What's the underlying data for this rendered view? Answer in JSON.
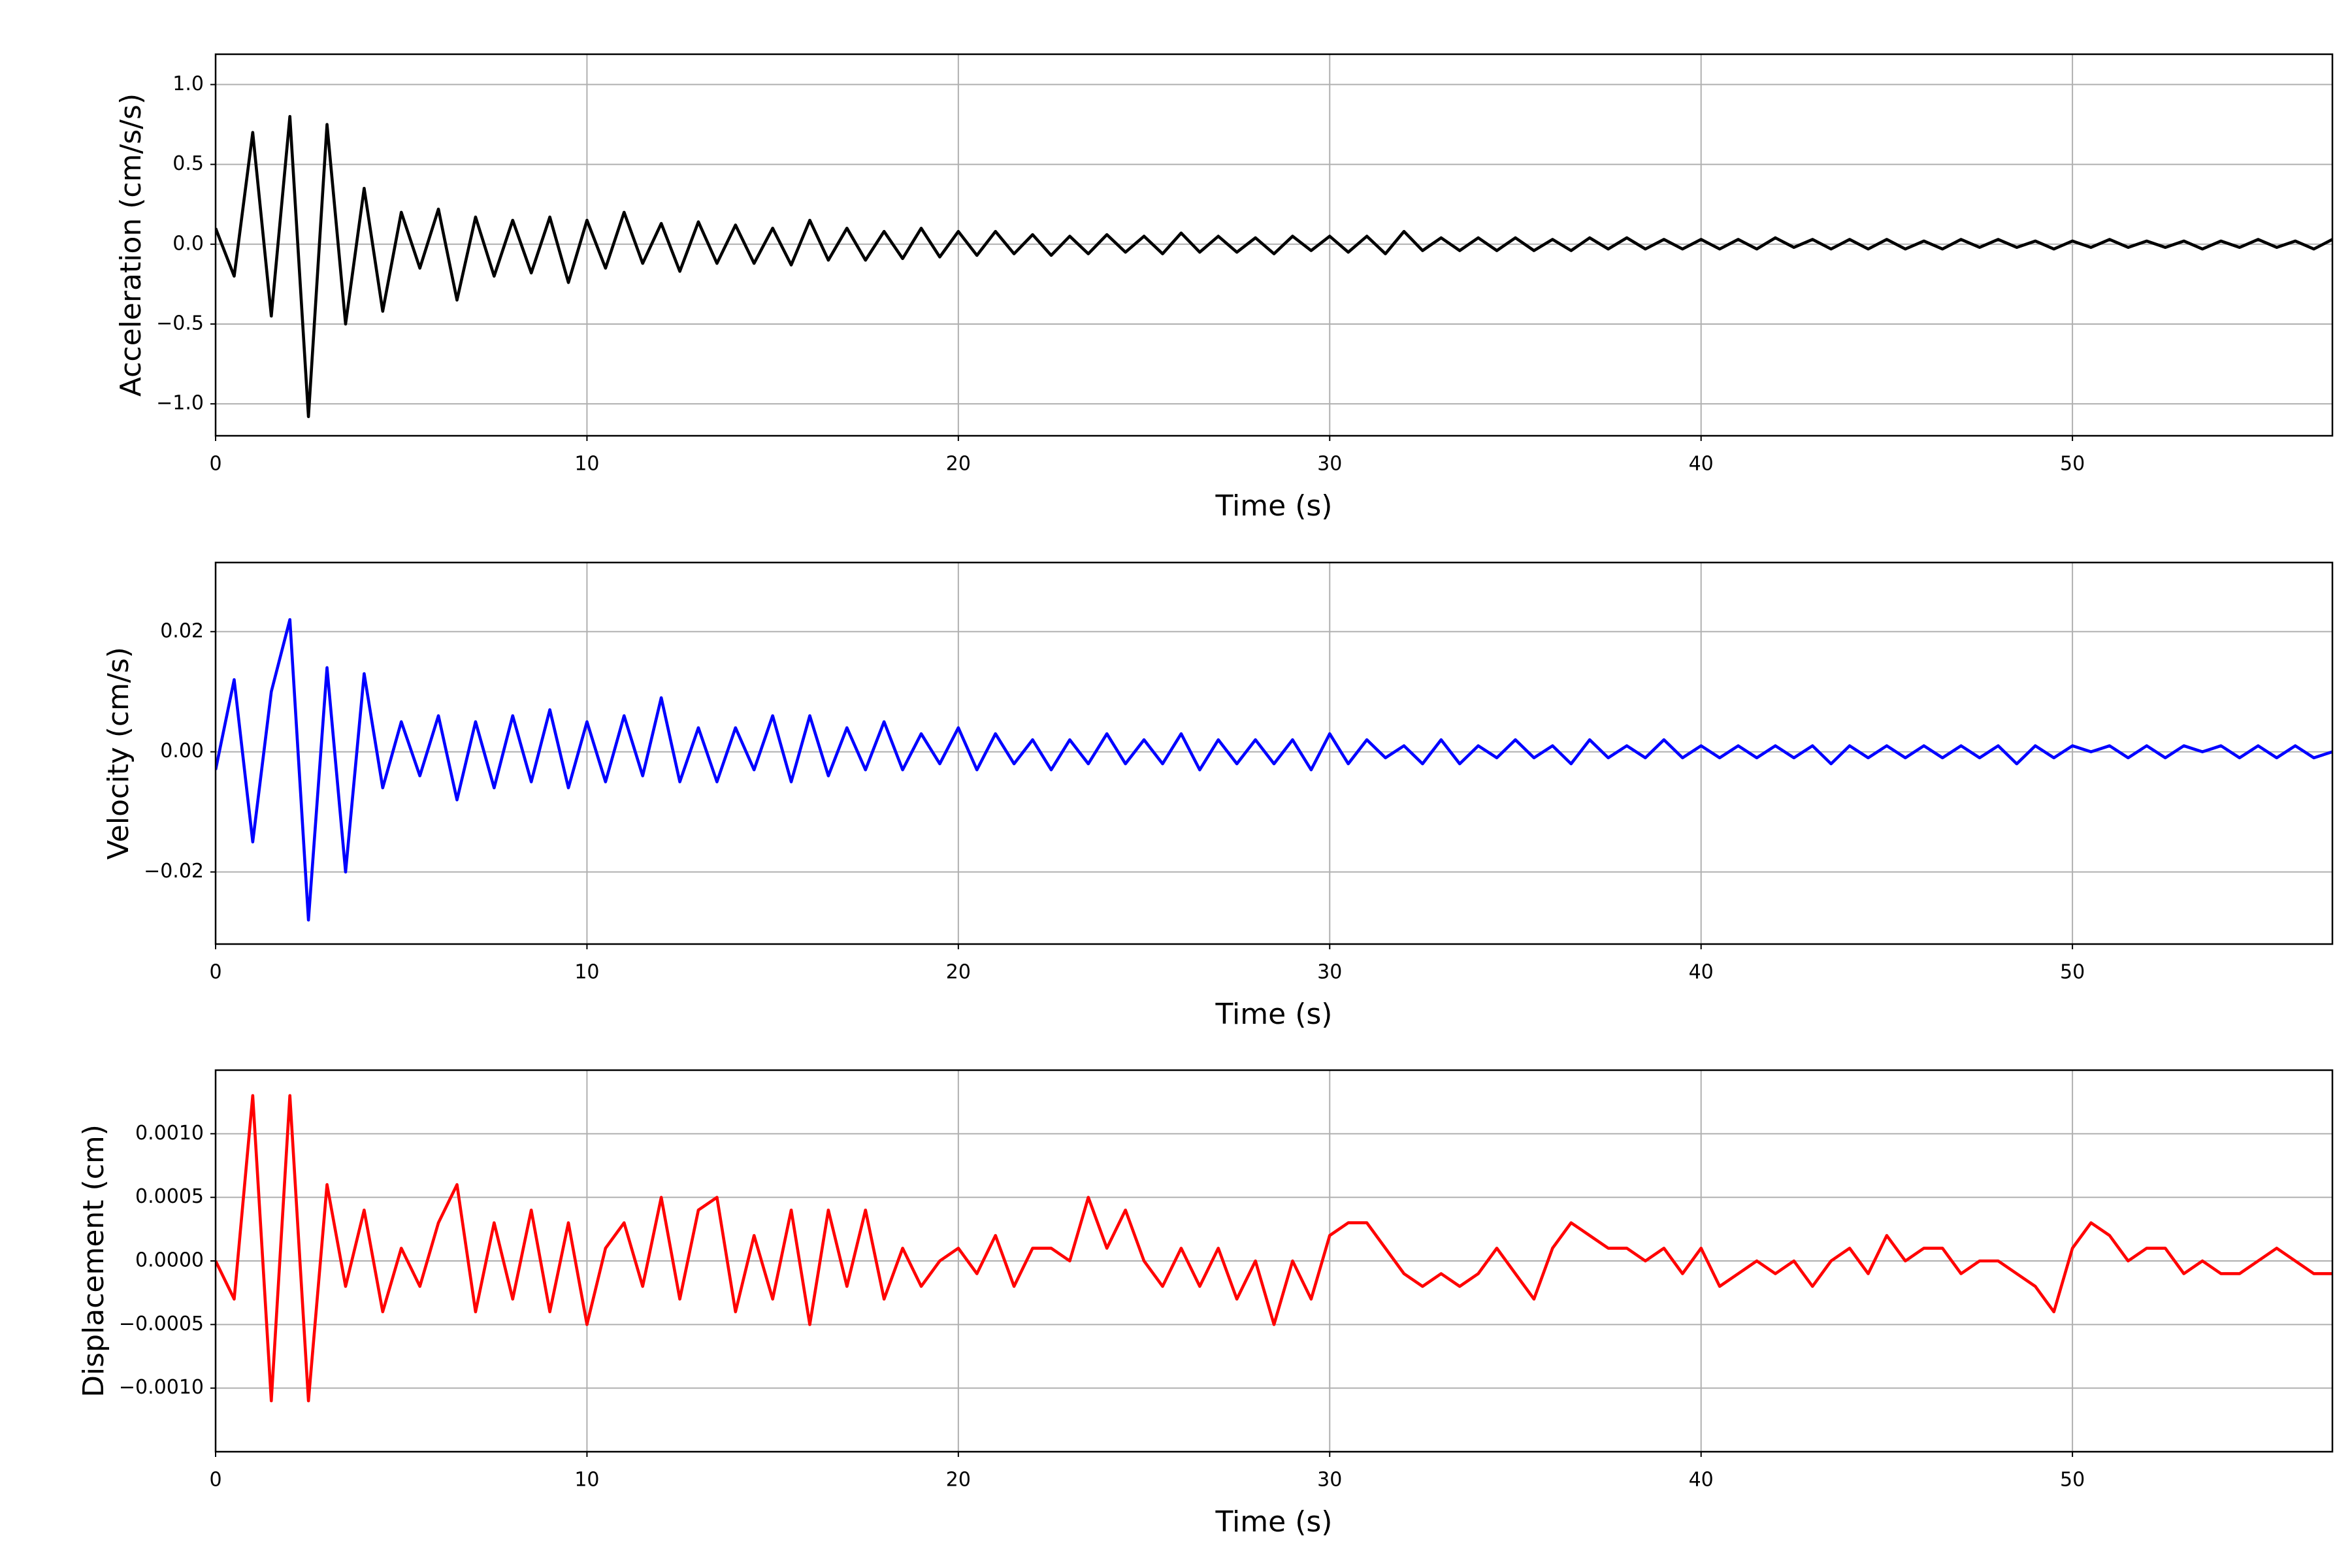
{
  "chart_data": [
    {
      "type": "line",
      "xlabel": "Time (s)",
      "ylabel": "Acceleration (cm/s/s)",
      "color": "#000000",
      "grid": true,
      "x": [
        0,
        0.5,
        1,
        1.5,
        2,
        2.5,
        3,
        3.5,
        4,
        4.5,
        5,
        5.5,
        6,
        6.5,
        7,
        7.5,
        8,
        8.5,
        9,
        9.5,
        10,
        10.5,
        11,
        11.5,
        12,
        12.5,
        13,
        13.5,
        14,
        14.5,
        15,
        15.5,
        16,
        16.5,
        17,
        17.5,
        18,
        18.5,
        19,
        19.5,
        20,
        20.5,
        21,
        21.5,
        22,
        22.5,
        23,
        23.5,
        24,
        24.5,
        25,
        25.5,
        26,
        26.5,
        27,
        27.5,
        28,
        28.5,
        29,
        29.5,
        30,
        30.5,
        31,
        31.5,
        32,
        32.5,
        33,
        33.5,
        34,
        34.5,
        35,
        35.5,
        36,
        36.5,
        37,
        37.5,
        38,
        38.5,
        39,
        39.5,
        40,
        40.5,
        41,
        41.5,
        42,
        42.5,
        43,
        43.5,
        44,
        44.5,
        45,
        45.5,
        46,
        46.5,
        47,
        47.5,
        48,
        48.5,
        49,
        49.5,
        50,
        50.5,
        51,
        51.5,
        52,
        52.5,
        53,
        53.5,
        54,
        54.5,
        55,
        55.5,
        56,
        56.5,
        57
      ],
      "values": [
        0.1,
        -0.2,
        0.7,
        -0.45,
        0.8,
        -1.08,
        0.75,
        -0.5,
        0.35,
        -0.42,
        0.2,
        -0.15,
        0.22,
        -0.35,
        0.17,
        -0.2,
        0.15,
        -0.18,
        0.17,
        -0.24,
        0.15,
        -0.15,
        0.2,
        -0.12,
        0.13,
        -0.17,
        0.14,
        -0.12,
        0.12,
        -0.12,
        0.1,
        -0.13,
        0.15,
        -0.1,
        0.1,
        -0.1,
        0.08,
        -0.09,
        0.1,
        -0.08,
        0.08,
        -0.07,
        0.08,
        -0.06,
        0.06,
        -0.07,
        0.05,
        -0.06,
        0.06,
        -0.05,
        0.05,
        -0.06,
        0.07,
        -0.05,
        0.05,
        -0.05,
        0.04,
        -0.06,
        0.05,
        -0.04,
        0.05,
        -0.05,
        0.05,
        -0.06,
        0.08,
        -0.04,
        0.04,
        -0.04,
        0.04,
        -0.04,
        0.04,
        -0.04,
        0.03,
        -0.04,
        0.04,
        -0.03,
        0.04,
        -0.03,
        0.03,
        -0.03,
        0.03,
        -0.03,
        0.03,
        -0.03,
        0.04,
        -0.02,
        0.03,
        -0.03,
        0.03,
        -0.03,
        0.03,
        -0.03,
        0.02,
        -0.03,
        0.03,
        -0.02,
        0.03,
        -0.02,
        0.02,
        -0.03,
        0.02,
        -0.02,
        0.03,
        -0.02,
        0.02,
        -0.02,
        0.02,
        -0.03,
        0.02,
        -0.02,
        0.03,
        -0.02,
        0.02,
        -0.03,
        0.03
      ],
      "xlim": [
        0,
        57
      ],
      "xticks": [
        0,
        10,
        20,
        30,
        40,
        50
      ],
      "ylim": [
        -1.2,
        1.19
      ],
      "yticks": [
        {
          "value": -1,
          "label": "−1.0"
        },
        {
          "value": -0.5,
          "label": "−0.5"
        },
        {
          "value": 0,
          "label": "0.0"
        },
        {
          "value": 0.5,
          "label": "0.5"
        },
        {
          "value": 1,
          "label": "1.0"
        }
      ]
    },
    {
      "type": "line",
      "xlabel": "Time (s)",
      "ylabel": "Velocity (cm/s)",
      "color": "#0000ff",
      "grid": true,
      "x": [
        0,
        0.5,
        1,
        1.5,
        2,
        2.5,
        3,
        3.5,
        4,
        4.5,
        5,
        5.5,
        6,
        6.5,
        7,
        7.5,
        8,
        8.5,
        9,
        9.5,
        10,
        10.5,
        11,
        11.5,
        12,
        12.5,
        13,
        13.5,
        14,
        14.5,
        15,
        15.5,
        16,
        16.5,
        17,
        17.5,
        18,
        18.5,
        19,
        19.5,
        20,
        20.5,
        21,
        21.5,
        22,
        22.5,
        23,
        23.5,
        24,
        24.5,
        25,
        25.5,
        26,
        26.5,
        27,
        27.5,
        28,
        28.5,
        29,
        29.5,
        30,
        30.5,
        31,
        31.5,
        32,
        32.5,
        33,
        33.5,
        34,
        34.5,
        35,
        35.5,
        36,
        36.5,
        37,
        37.5,
        38,
        38.5,
        39,
        39.5,
        40,
        40.5,
        41,
        41.5,
        42,
        42.5,
        43,
        43.5,
        44,
        44.5,
        45,
        45.5,
        46,
        46.5,
        47,
        47.5,
        48,
        48.5,
        49,
        49.5,
        50,
        50.5,
        51,
        51.5,
        52,
        52.5,
        53,
        53.5,
        54,
        54.5,
        55,
        55.5,
        56,
        56.5,
        57
      ],
      "values": [
        -0.003,
        0.012,
        -0.015,
        0.01,
        0.022,
        -0.028,
        0.014,
        -0.02,
        0.013,
        -0.006,
        0.005,
        -0.004,
        0.006,
        -0.008,
        0.005,
        -0.006,
        0.006,
        -0.005,
        0.007,
        -0.006,
        0.005,
        -0.005,
        0.006,
        -0.004,
        0.009,
        -0.005,
        0.004,
        -0.005,
        0.004,
        -0.003,
        0.006,
        -0.005,
        0.006,
        -0.004,
        0.004,
        -0.003,
        0.005,
        -0.003,
        0.003,
        -0.002,
        0.004,
        -0.003,
        0.003,
        -0.002,
        0.002,
        -0.003,
        0.002,
        -0.002,
        0.003,
        -0.002,
        0.002,
        -0.002,
        0.003,
        -0.003,
        0.002,
        -0.002,
        0.002,
        -0.002,
        0.002,
        -0.003,
        0.003,
        -0.002,
        0.002,
        -0.001,
        0.001,
        -0.002,
        0.002,
        -0.002,
        0.001,
        -0.001,
        0.002,
        -0.001,
        0.001,
        -0.002,
        0.002,
        -0.001,
        0.001,
        -0.001,
        0.002,
        -0.001,
        0.001,
        -0.001,
        0.001,
        -0.001,
        0.001,
        -0.001,
        0.001,
        -0.002,
        0.001,
        -0.001,
        0.001,
        -0.001,
        0.001,
        -0.001,
        0.001,
        -0.001,
        0.001,
        -0.002,
        0.001,
        -0.001,
        0.001,
        0,
        0.001,
        -0.001,
        0.001,
        -0.001,
        0.001,
        0,
        0.001,
        -0.001,
        0.001,
        -0.001,
        0.001,
        -0.001,
        0
      ],
      "xlim": [
        0,
        57
      ],
      "xticks": [
        0,
        10,
        20,
        30,
        40,
        50
      ],
      "ylim": [
        -0.032,
        0.0315
      ],
      "yticks": [
        {
          "value": -0.02,
          "label": "−0.02"
        },
        {
          "value": 0,
          "label": "0.00"
        },
        {
          "value": 0.02,
          "label": "0.02"
        }
      ]
    },
    {
      "type": "line",
      "xlabel": "Time (s)",
      "ylabel": "Displacement (cm)",
      "color": "#ff0000",
      "grid": true,
      "x": [
        0,
        0.5,
        1,
        1.5,
        2,
        2.5,
        3,
        3.5,
        4,
        4.5,
        5,
        5.5,
        6,
        6.5,
        7,
        7.5,
        8,
        8.5,
        9,
        9.5,
        10,
        10.5,
        11,
        11.5,
        12,
        12.5,
        13,
        13.5,
        14,
        14.5,
        15,
        15.5,
        16,
        16.5,
        17,
        17.5,
        18,
        18.5,
        19,
        19.5,
        20,
        20.5,
        21,
        21.5,
        22,
        22.5,
        23,
        23.5,
        24,
        24.5,
        25,
        25.5,
        26,
        26.5,
        27,
        27.5,
        28,
        28.5,
        29,
        29.5,
        30,
        30.5,
        31,
        31.5,
        32,
        32.5,
        33,
        33.5,
        34,
        34.5,
        35,
        35.5,
        36,
        36.5,
        37,
        37.5,
        38,
        38.5,
        39,
        39.5,
        40,
        40.5,
        41,
        41.5,
        42,
        42.5,
        43,
        43.5,
        44,
        44.5,
        45,
        45.5,
        46,
        46.5,
        47,
        47.5,
        48,
        48.5,
        49,
        49.5,
        50,
        50.5,
        51,
        51.5,
        52,
        52.5,
        53,
        53.5,
        54,
        54.5,
        55,
        55.5,
        56,
        56.5,
        57
      ],
      "values": [
        0,
        -0.0003,
        0.0013,
        -0.0011,
        0.0013,
        -0.0011,
        0.0006,
        -0.0002,
        0.0004,
        -0.0004,
        0.0001,
        -0.0002,
        0.0003,
        0.0006,
        -0.0004,
        0.0003,
        -0.0003,
        0.0004,
        -0.0004,
        0.0003,
        -0.0005,
        0.0001,
        0.0003,
        -0.0002,
        0.0005,
        -0.0003,
        0.0004,
        0.0005,
        -0.0004,
        0.0002,
        -0.0003,
        0.0004,
        -0.0005,
        0.0004,
        -0.0002,
        0.0004,
        -0.0003,
        0.0001,
        -0.0002,
        0,
        0.0001,
        -0.0001,
        0.0002,
        -0.0002,
        0.0001,
        0.0001,
        0,
        0.0005,
        0.0001,
        0.0004,
        0,
        -0.0002,
        0.0001,
        -0.0002,
        0.0001,
        -0.0003,
        0,
        -0.0005,
        0,
        -0.0003,
        0.0002,
        0.0003,
        0.0003,
        0.0001,
        -0.0001,
        -0.0002,
        -0.0001,
        -0.0002,
        -0.0001,
        0.0001,
        -0.0001,
        -0.0003,
        0.0001,
        0.0003,
        0.0002,
        0.0001,
        0.0001,
        0,
        0.0001,
        -0.0001,
        0.0001,
        -0.0002,
        -0.0001,
        0,
        -0.0001,
        0,
        -0.0002,
        0,
        0.0001,
        -0.0001,
        0.0002,
        0,
        0.0001,
        0.0001,
        -0.0001,
        0,
        0,
        -0.0001,
        -0.0002,
        -0.0004,
        0.0001,
        0.0003,
        0.0002,
        0,
        0.0001,
        0.0001,
        -0.0001,
        0,
        -0.0001,
        -0.0001,
        0,
        0.0001,
        0,
        -0.0001,
        -0.0001
      ],
      "xlim": [
        0,
        57
      ],
      "xticks": [
        0,
        10,
        20,
        30,
        40,
        50
      ],
      "ylim": [
        -0.0015,
        0.0015
      ],
      "yticks": [
        {
          "value": -0.001,
          "label": "−0.0010"
        },
        {
          "value": -0.0005,
          "label": "−0.0005"
        },
        {
          "value": 0,
          "label": "0.0000"
        },
        {
          "value": 0.0005,
          "label": "0.0005"
        },
        {
          "value": 0.001,
          "label": "0.0010"
        }
      ]
    }
  ]
}
